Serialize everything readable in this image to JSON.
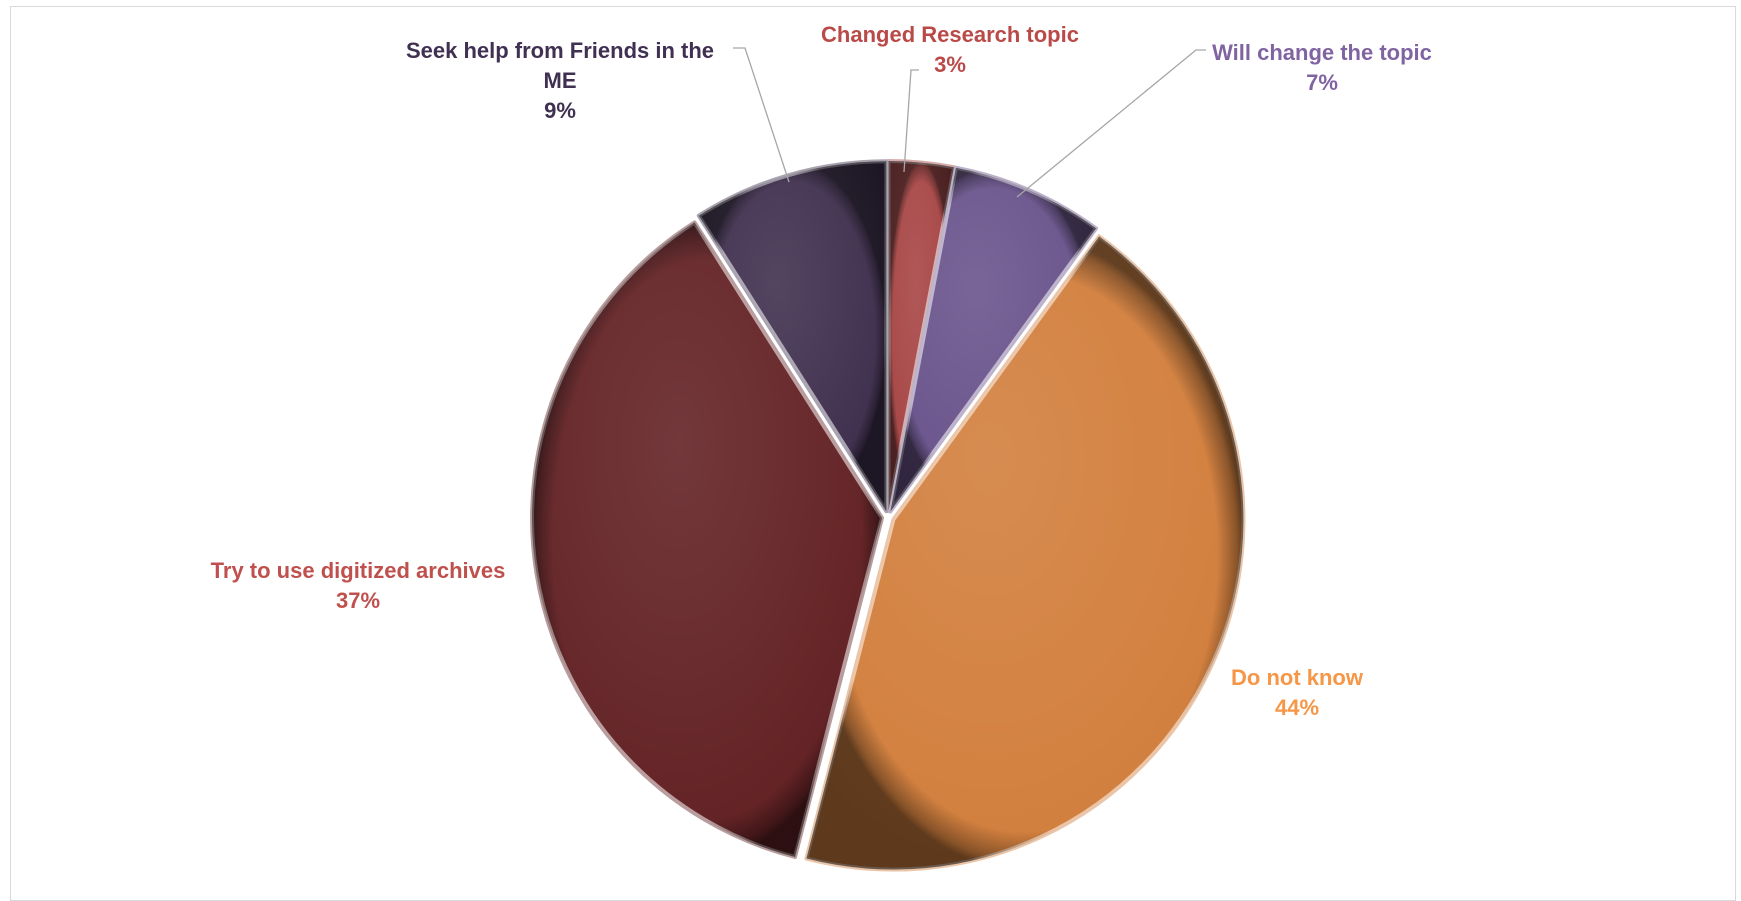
{
  "chart_data": {
    "type": "pie",
    "style": "3d-bevel",
    "start_angle_deg": 0,
    "direction": "clockwise",
    "title": "",
    "slices": [
      {
        "label_lines": [
          "Changed Research topic"
        ],
        "value": 3,
        "value_label": "3%",
        "color": "#A74545",
        "label_color": "#B94A48"
      },
      {
        "label_lines": [
          "Will change the topic"
        ],
        "value": 7,
        "value_label": "7%",
        "color": "#6A548C",
        "label_color": "#8064A2"
      },
      {
        "label_lines": [
          "Do not know"
        ],
        "value": 44,
        "value_label": "44%",
        "color": "#D27F3D",
        "label_color": "#F79646"
      },
      {
        "label_lines": [
          "Try to use digitized archives"
        ],
        "value": 37,
        "value_label": "37%",
        "color": "#632225",
        "label_color": "#C0504D"
      },
      {
        "label_lines": [
          "Seek help from Friends in the",
          "ME"
        ],
        "value": 9,
        "value_label": "9%",
        "color": "#40304F",
        "label_color": "#403152"
      }
    ]
  }
}
